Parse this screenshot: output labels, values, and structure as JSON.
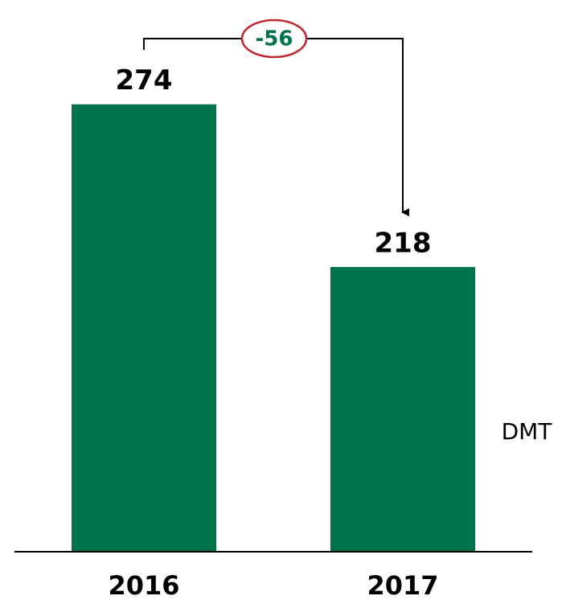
{
  "chart_data": {
    "type": "bar",
    "categories": [
      "2016",
      "2017"
    ],
    "values": [
      274,
      218
    ],
    "color": "#00734a",
    "ylim": [
      120,
      285
    ],
    "unit_label": "DMT",
    "annotation": {
      "text": "-56",
      "border_color": "#c0282d",
      "text_color": "#00734a"
    }
  }
}
